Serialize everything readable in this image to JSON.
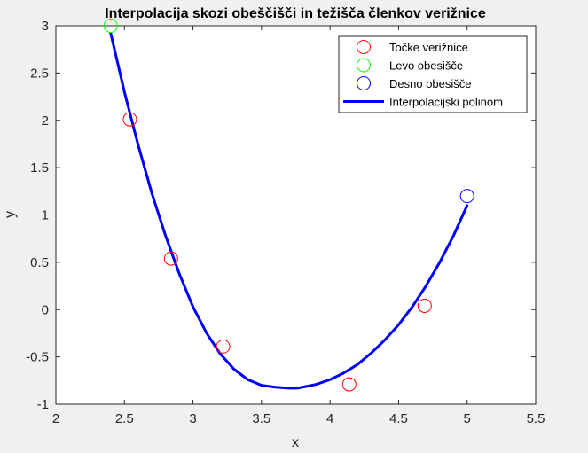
{
  "chart_data": {
    "type": "line",
    "title": "Interpolacija skozi obeščišči in težišča členkov verižnice",
    "xlabel": "x",
    "ylabel": "y",
    "xlim": [
      2,
      5.5
    ],
    "ylim": [
      -1,
      3
    ],
    "xticks": [
      2,
      2.5,
      3,
      3.5,
      4,
      4.5,
      5,
      5.5
    ],
    "xtick_labels": [
      "2",
      "2.5",
      "3",
      "3.5",
      "4",
      "4.5",
      "5",
      "5.5"
    ],
    "yticks": [
      -1,
      -0.5,
      0,
      0.5,
      1,
      1.5,
      2,
      2.5,
      3
    ],
    "ytick_labels": [
      "-1",
      "-0.5",
      "0",
      "0.5",
      "1",
      "1.5",
      "2",
      "2.5",
      "3"
    ],
    "grid": false,
    "legend_position": "top-right",
    "series": [
      {
        "name": "Točke verižnice",
        "kind": "scatter",
        "marker": "circle",
        "color": "#ff0000",
        "x": [
          2.54,
          2.84,
          3.22,
          4.14,
          4.69
        ],
        "y": [
          2.01,
          0.54,
          -0.39,
          -0.79,
          0.04
        ]
      },
      {
        "name": "Levo obesišče",
        "kind": "scatter",
        "marker": "circle",
        "color": "#00ff00",
        "x": [
          2.4
        ],
        "y": [
          3.0
        ]
      },
      {
        "name": "Desno obesišče",
        "kind": "scatter",
        "marker": "circle",
        "color": "#0000ff",
        "x": [
          5.0
        ],
        "y": [
          1.2
        ]
      },
      {
        "name": "Interpolacijski polinom",
        "kind": "line",
        "color": "#0000ff",
        "x": [
          2.4,
          2.5,
          2.6,
          2.7,
          2.8,
          2.9,
          3.0,
          3.1,
          3.2,
          3.3,
          3.4,
          3.5,
          3.6,
          3.7,
          3.76,
          3.8,
          3.9,
          4.0,
          4.1,
          4.2,
          4.3,
          4.4,
          4.5,
          4.6,
          4.7,
          4.8,
          4.9,
          5.0
        ],
        "y": [
          2.92,
          2.3,
          1.74,
          1.23,
          0.78,
          0.38,
          0.03,
          -0.25,
          -0.47,
          -0.63,
          -0.74,
          -0.8,
          -0.82,
          -0.83,
          -0.83,
          -0.82,
          -0.79,
          -0.74,
          -0.67,
          -0.58,
          -0.46,
          -0.32,
          -0.16,
          0.03,
          0.25,
          0.5,
          0.78,
          1.1
        ]
      }
    ]
  }
}
